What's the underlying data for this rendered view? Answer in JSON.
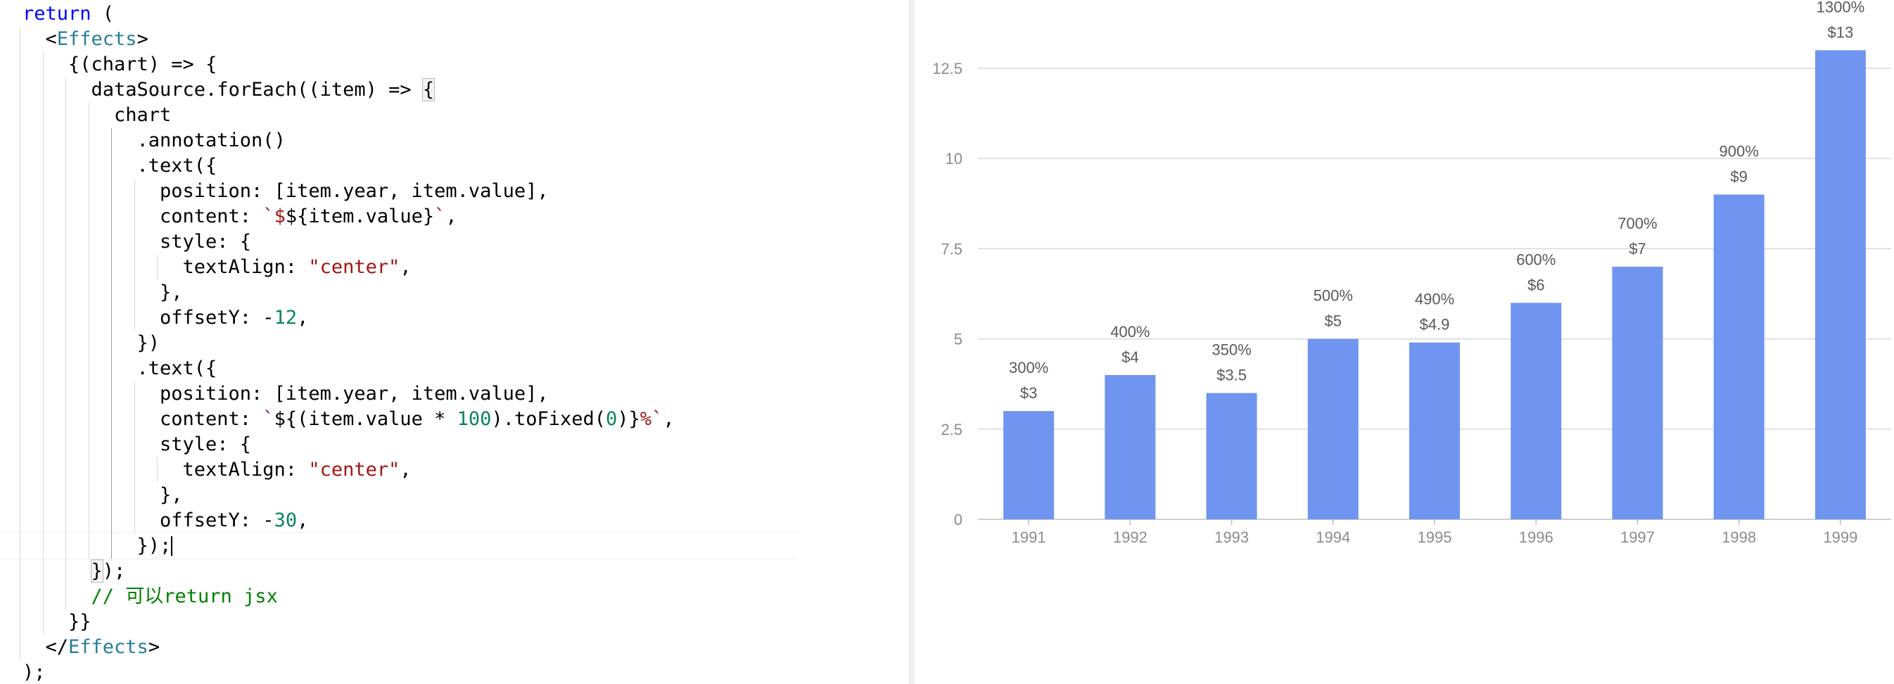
{
  "editor": {
    "lines": [
      {
        "indent": 0,
        "tokens": [
          {
            "t": "return",
            "c": "keyword"
          },
          {
            "t": " (",
            "c": "plain"
          }
        ]
      },
      {
        "indent": 1,
        "tokens": [
          {
            "t": "<",
            "c": "plain"
          },
          {
            "t": "Effects",
            "c": "type"
          },
          {
            "t": ">",
            "c": "plain"
          }
        ]
      },
      {
        "indent": 2,
        "tokens": [
          {
            "t": "{(chart) => {",
            "c": "plain"
          }
        ]
      },
      {
        "indent": 3,
        "tokens": [
          {
            "t": "dataSource.forEach((item) => ",
            "c": "plain"
          },
          {
            "t": "{",
            "c": "bracket"
          }
        ]
      },
      {
        "indent": 4,
        "tokens": [
          {
            "t": "chart",
            "c": "plain"
          }
        ]
      },
      {
        "indent": 5,
        "tokens": [
          {
            "t": ".annotation()",
            "c": "plain"
          }
        ]
      },
      {
        "indent": 5,
        "tokens": [
          {
            "t": ".text({",
            "c": "plain"
          }
        ]
      },
      {
        "indent": 6,
        "tokens": [
          {
            "t": "position: [item.year, item.value],",
            "c": "plain"
          }
        ]
      },
      {
        "indent": 6,
        "tokens": [
          {
            "t": "content: ",
            "c": "plain"
          },
          {
            "t": "`$",
            "c": "string"
          },
          {
            "t": "${item.value}",
            "c": "plain"
          },
          {
            "t": "`",
            "c": "string"
          },
          {
            "t": ",",
            "c": "plain"
          }
        ]
      },
      {
        "indent": 6,
        "tokens": [
          {
            "t": "style: {",
            "c": "plain"
          }
        ]
      },
      {
        "indent": 7,
        "tokens": [
          {
            "t": "textAlign: ",
            "c": "plain"
          },
          {
            "t": "\"center\"",
            "c": "string"
          },
          {
            "t": ",",
            "c": "plain"
          }
        ]
      },
      {
        "indent": 6,
        "tokens": [
          {
            "t": "},",
            "c": "plain"
          }
        ]
      },
      {
        "indent": 6,
        "tokens": [
          {
            "t": "offsetY: -",
            "c": "plain"
          },
          {
            "t": "12",
            "c": "number"
          },
          {
            "t": ",",
            "c": "plain"
          }
        ]
      },
      {
        "indent": 5,
        "tokens": [
          {
            "t": "})",
            "c": "plain"
          }
        ]
      },
      {
        "indent": 5,
        "tokens": [
          {
            "t": ".text({",
            "c": "plain"
          }
        ]
      },
      {
        "indent": 6,
        "tokens": [
          {
            "t": "position: [item.year, item.value],",
            "c": "plain"
          }
        ]
      },
      {
        "indent": 6,
        "tokens": [
          {
            "t": "content: ",
            "c": "plain"
          },
          {
            "t": "`",
            "c": "string"
          },
          {
            "t": "${(item.value * ",
            "c": "plain"
          },
          {
            "t": "100",
            "c": "number"
          },
          {
            "t": ").toFixed(",
            "c": "plain"
          },
          {
            "t": "0",
            "c": "number"
          },
          {
            "t": ")}",
            "c": "plain"
          },
          {
            "t": "%`",
            "c": "string"
          },
          {
            "t": ",",
            "c": "plain"
          }
        ]
      },
      {
        "indent": 6,
        "tokens": [
          {
            "t": "style: {",
            "c": "plain"
          }
        ]
      },
      {
        "indent": 7,
        "tokens": [
          {
            "t": "textAlign: ",
            "c": "plain"
          },
          {
            "t": "\"center\"",
            "c": "string"
          },
          {
            "t": ",",
            "c": "plain"
          }
        ]
      },
      {
        "indent": 6,
        "tokens": [
          {
            "t": "},",
            "c": "plain"
          }
        ]
      },
      {
        "indent": 6,
        "tokens": [
          {
            "t": "offsetY: -",
            "c": "plain"
          },
          {
            "t": "30",
            "c": "number"
          },
          {
            "t": ",",
            "c": "plain"
          }
        ]
      },
      {
        "indent": 5,
        "tokens": [
          {
            "t": "});",
            "c": "plain"
          }
        ],
        "cursor": true
      },
      {
        "indent": 3,
        "tokens": [
          {
            "t": "}",
            "c": "bracket"
          },
          {
            "t": ");",
            "c": "plain"
          }
        ]
      },
      {
        "indent": 3,
        "tokens": [
          {
            "t": "// 可以return jsx",
            "c": "comment"
          }
        ]
      },
      {
        "indent": 2,
        "tokens": [
          {
            "t": "}}",
            "c": "plain"
          }
        ]
      },
      {
        "indent": 1,
        "tokens": [
          {
            "t": "</",
            "c": "plain"
          },
          {
            "t": "Effects",
            "c": "type"
          },
          {
            "t": ">",
            "c": "plain"
          }
        ]
      },
      {
        "indent": 0,
        "tokens": [
          {
            "t": ");",
            "c": "plain"
          }
        ]
      }
    ]
  },
  "colors": {
    "bar": "#6f95f0",
    "grid": "#d9d9d9",
    "axis": "#bfbfbf"
  },
  "chart_data": {
    "type": "bar",
    "categories": [
      "1991",
      "1992",
      "1993",
      "1994",
      "1995",
      "1996",
      "1997",
      "1998",
      "1999"
    ],
    "values": [
      3,
      4,
      3.5,
      5,
      4.9,
      6,
      7,
      9,
      13
    ],
    "value_labels": [
      "$3",
      "$4",
      "$3.5",
      "$5",
      "$4.9",
      "$6",
      "$7",
      "$9",
      "$13"
    ],
    "percent_labels": [
      "300%",
      "400%",
      "350%",
      "500%",
      "490%",
      "600%",
      "700%",
      "900%",
      "1300%"
    ],
    "y_ticks": [
      0,
      2.5,
      5,
      7.5,
      10,
      12.5
    ],
    "y_tick_labels": [
      "0",
      "2.5",
      "5",
      "7.5",
      "10",
      "12.5"
    ],
    "ylim": [
      0,
      13
    ],
    "grid": true,
    "title": "",
    "xlabel": "",
    "ylabel": ""
  }
}
